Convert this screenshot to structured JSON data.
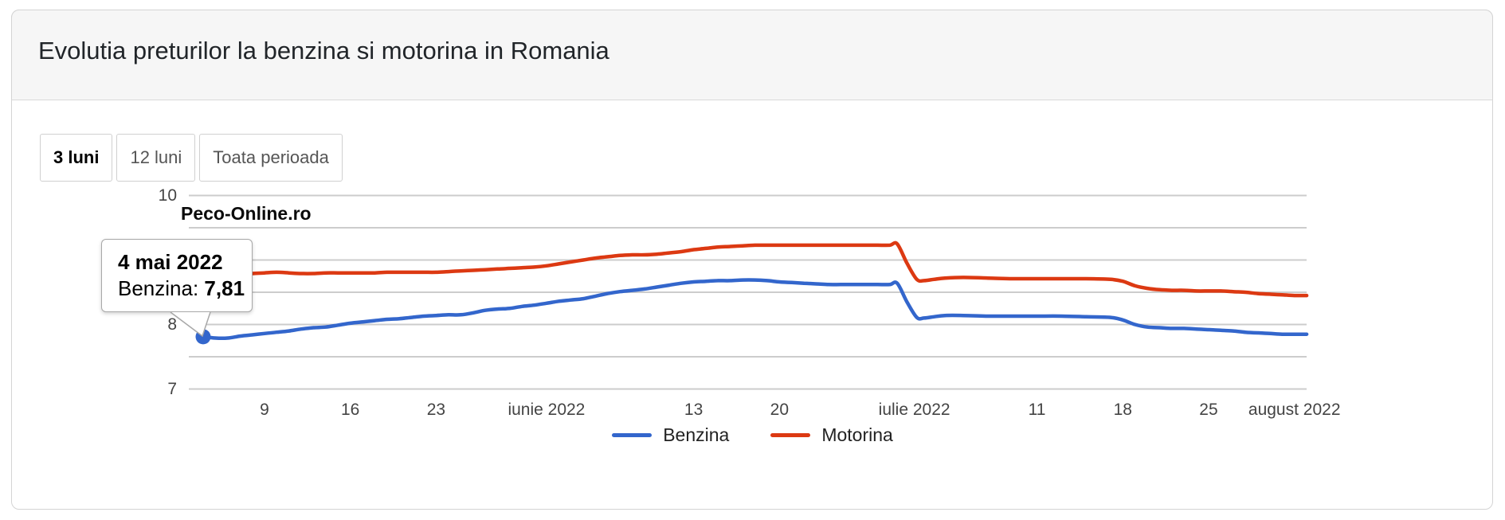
{
  "header": {
    "title": "Evolutia preturilor la benzina si motorina in Romania"
  },
  "toolbar": {
    "buttons": [
      {
        "label": "3 luni",
        "active": true
      },
      {
        "label": "12 luni",
        "active": false
      },
      {
        "label": "Toata perioada",
        "active": false
      }
    ]
  },
  "watermark": "Peco-Online.ro",
  "tooltip": {
    "date": "4 mai 2022",
    "series_label": "Benzina:",
    "value": "7,81"
  },
  "legend": [
    {
      "label": "Benzina",
      "color": "#3366cc"
    },
    {
      "label": "Motorina",
      "color": "#dc3912"
    }
  ],
  "colors": {
    "benzina": "#3366cc",
    "motorina": "#dc3912",
    "gridline": "#cccccc",
    "axis_text": "#444444"
  },
  "chart_data": {
    "type": "line",
    "x_unit": "days from 2022-05-04",
    "x_range_days": [
      0,
      90
    ],
    "ylim": [
      7,
      10
    ],
    "grid": "horizontal",
    "legend_position": "bottom",
    "gridline_values": [
      10,
      9.5,
      9,
      8.5,
      8,
      7.5,
      7
    ],
    "y_ticks": [
      {
        "label": "10",
        "value": 10
      },
      {
        "label": "9",
        "value": 9
      },
      {
        "label": "8",
        "value": 8
      },
      {
        "label": "7",
        "value": 7
      }
    ],
    "x_ticks": [
      {
        "label": "9",
        "t": 5
      },
      {
        "label": "16",
        "t": 12
      },
      {
        "label": "23",
        "t": 19
      },
      {
        "label": "iunie 2022",
        "t": 28
      },
      {
        "label": "13",
        "t": 40
      },
      {
        "label": "20",
        "t": 47
      },
      {
        "label": "iulie 2022",
        "t": 58
      },
      {
        "label": "11",
        "t": 68
      },
      {
        "label": "18",
        "t": 75
      },
      {
        "label": "25",
        "t": 82
      },
      {
        "label": "august 2022",
        "t": 89
      }
    ],
    "highlight": {
      "series": "Benzina",
      "date_label": "4 mai 2022",
      "t": 0,
      "value": 7.81
    },
    "series": [
      {
        "name": "Benzina",
        "color": "#3366cc",
        "points": [
          [
            0,
            7.81
          ],
          [
            1,
            7.79
          ],
          [
            2,
            7.79
          ],
          [
            3,
            7.82
          ],
          [
            4,
            7.84
          ],
          [
            5,
            7.86
          ],
          [
            6,
            7.88
          ],
          [
            7,
            7.9
          ],
          [
            8,
            7.93
          ],
          [
            9,
            7.95
          ],
          [
            10,
            7.96
          ],
          [
            11,
            7.99
          ],
          [
            12,
            8.02
          ],
          [
            13,
            8.04
          ],
          [
            14,
            8.06
          ],
          [
            15,
            8.08
          ],
          [
            16,
            8.09
          ],
          [
            17,
            8.11
          ],
          [
            18,
            8.13
          ],
          [
            19,
            8.14
          ],
          [
            20,
            8.15
          ],
          [
            21,
            8.15
          ],
          [
            22,
            8.18
          ],
          [
            23,
            8.22
          ],
          [
            24,
            8.24
          ],
          [
            25,
            8.25
          ],
          [
            26,
            8.28
          ],
          [
            27,
            8.3
          ],
          [
            28,
            8.33
          ],
          [
            29,
            8.36
          ],
          [
            30,
            8.38
          ],
          [
            31,
            8.4
          ],
          [
            32,
            8.44
          ],
          [
            33,
            8.48
          ],
          [
            34,
            8.51
          ],
          [
            35,
            8.53
          ],
          [
            36,
            8.55
          ],
          [
            37,
            8.58
          ],
          [
            38,
            8.61
          ],
          [
            39,
            8.64
          ],
          [
            40,
            8.66
          ],
          [
            41,
            8.67
          ],
          [
            42,
            8.68
          ],
          [
            43,
            8.68
          ],
          [
            44,
            8.69
          ],
          [
            45,
            8.69
          ],
          [
            46,
            8.68
          ],
          [
            47,
            8.66
          ],
          [
            48,
            8.65
          ],
          [
            49,
            8.64
          ],
          [
            50,
            8.63
          ],
          [
            51,
            8.62
          ],
          [
            52,
            8.62
          ],
          [
            53,
            8.62
          ],
          [
            54,
            8.62
          ],
          [
            55,
            8.62
          ],
          [
            56,
            8.62
          ],
          [
            56.6,
            8.64
          ],
          [
            57.4,
            8.35
          ],
          [
            58.2,
            8.11
          ],
          [
            58.8,
            8.1
          ],
          [
            59.6,
            8.12
          ],
          [
            60.5,
            8.14
          ],
          [
            62,
            8.14
          ],
          [
            64,
            8.13
          ],
          [
            66,
            8.13
          ],
          [
            68,
            8.13
          ],
          [
            70,
            8.13
          ],
          [
            72,
            8.12
          ],
          [
            74,
            8.11
          ],
          [
            75,
            8.07
          ],
          [
            76,
            8.0
          ],
          [
            77,
            7.96
          ],
          [
            78,
            7.95
          ],
          [
            79,
            7.94
          ],
          [
            80,
            7.94
          ],
          [
            81,
            7.93
          ],
          [
            82,
            7.92
          ],
          [
            83,
            7.91
          ],
          [
            84,
            7.9
          ],
          [
            85,
            7.88
          ],
          [
            86,
            7.87
          ],
          [
            87,
            7.86
          ],
          [
            88,
            7.85
          ],
          [
            89,
            7.85
          ],
          [
            90,
            7.85
          ]
        ]
      },
      {
        "name": "Motorina",
        "color": "#dc3912",
        "points": [
          [
            0,
            8.76
          ],
          [
            1,
            8.74
          ],
          [
            2,
            8.74
          ],
          [
            3,
            8.76
          ],
          [
            4,
            8.79
          ],
          [
            5,
            8.8
          ],
          [
            6,
            8.81
          ],
          [
            7,
            8.8
          ],
          [
            8,
            8.79
          ],
          [
            9,
            8.79
          ],
          [
            10,
            8.8
          ],
          [
            11,
            8.8
          ],
          [
            12,
            8.8
          ],
          [
            13,
            8.8
          ],
          [
            14,
            8.8
          ],
          [
            15,
            8.81
          ],
          [
            16,
            8.81
          ],
          [
            17,
            8.81
          ],
          [
            18,
            8.81
          ],
          [
            19,
            8.81
          ],
          [
            20,
            8.82
          ],
          [
            21,
            8.83
          ],
          [
            22,
            8.84
          ],
          [
            23,
            8.85
          ],
          [
            24,
            8.86
          ],
          [
            25,
            8.87
          ],
          [
            26,
            8.88
          ],
          [
            27,
            8.89
          ],
          [
            28,
            8.91
          ],
          [
            29,
            8.94
          ],
          [
            30,
            8.97
          ],
          [
            31,
            9.0
          ],
          [
            32,
            9.03
          ],
          [
            33,
            9.05
          ],
          [
            34,
            9.07
          ],
          [
            35,
            9.08
          ],
          [
            36,
            9.08
          ],
          [
            37,
            9.09
          ],
          [
            38,
            9.11
          ],
          [
            39,
            9.13
          ],
          [
            40,
            9.16
          ],
          [
            41,
            9.18
          ],
          [
            42,
            9.2
          ],
          [
            43,
            9.21
          ],
          [
            44,
            9.22
          ],
          [
            45,
            9.23
          ],
          [
            46,
            9.23
          ],
          [
            47,
            9.23
          ],
          [
            48,
            9.23
          ],
          [
            49,
            9.23
          ],
          [
            50,
            9.23
          ],
          [
            51,
            9.23
          ],
          [
            52,
            9.23
          ],
          [
            53,
            9.23
          ],
          [
            54,
            9.23
          ],
          [
            55,
            9.23
          ],
          [
            56,
            9.23
          ],
          [
            56.6,
            9.25
          ],
          [
            57.4,
            8.95
          ],
          [
            58.2,
            8.7
          ],
          [
            58.8,
            8.68
          ],
          [
            59.6,
            8.7
          ],
          [
            60.5,
            8.72
          ],
          [
            62,
            8.73
          ],
          [
            64,
            8.72
          ],
          [
            66,
            8.71
          ],
          [
            68,
            8.71
          ],
          [
            70,
            8.71
          ],
          [
            72,
            8.71
          ],
          [
            74,
            8.7
          ],
          [
            75,
            8.67
          ],
          [
            76,
            8.6
          ],
          [
            77,
            8.56
          ],
          [
            78,
            8.54
          ],
          [
            79,
            8.53
          ],
          [
            80,
            8.53
          ],
          [
            81,
            8.52
          ],
          [
            82,
            8.52
          ],
          [
            83,
            8.52
          ],
          [
            84,
            8.51
          ],
          [
            85,
            8.5
          ],
          [
            86,
            8.48
          ],
          [
            87,
            8.47
          ],
          [
            88,
            8.46
          ],
          [
            89,
            8.45
          ],
          [
            90,
            8.45
          ]
        ]
      }
    ]
  }
}
